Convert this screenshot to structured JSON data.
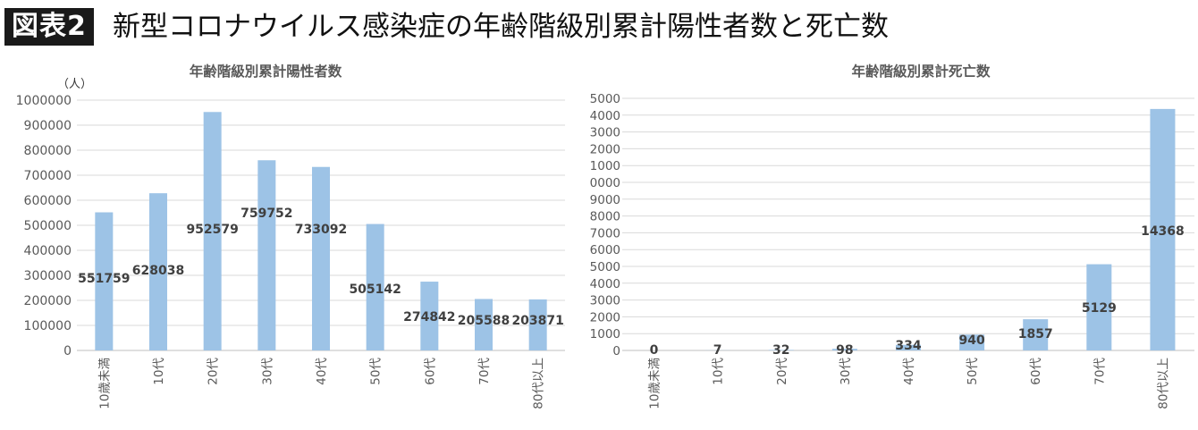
{
  "header": {
    "badge": "図表2",
    "title": "新型コロナウイルス感染症の年齢階級別累計陽性者数と死亡数"
  },
  "chart_data": [
    {
      "type": "bar",
      "title": "年齢階級別累計陽性者数",
      "ylabel": "（人）",
      "categories": [
        "10歳未満",
        "10代",
        "20代",
        "30代",
        "40代",
        "50代",
        "60代",
        "70代",
        "80代以上"
      ],
      "values": [
        551759,
        628038,
        952579,
        759752,
        733092,
        505142,
        274842,
        205588,
        203871
      ],
      "ylim": [
        0,
        1000000
      ],
      "yticks": [
        0,
        100000,
        200000,
        300000,
        400000,
        500000,
        600000,
        700000,
        800000,
        900000,
        1000000
      ],
      "grid": true,
      "bar_color": "#9dc3e6"
    },
    {
      "type": "bar",
      "title": "年齢階級別累計死亡数",
      "ylabel": "",
      "categories": [
        "10歳未満",
        "10代",
        "20代",
        "30代",
        "40代",
        "50代",
        "60代",
        "70代",
        "80代以上"
      ],
      "values": [
        0,
        7,
        32,
        98,
        334,
        940,
        1857,
        5129,
        14368
      ],
      "ylim": [
        0,
        15000
      ],
      "yticks": [
        0,
        1000,
        2000,
        3000,
        4000,
        5000,
        6000,
        7000,
        8000,
        9000,
        10000,
        11000,
        12000,
        13000,
        14000,
        15000
      ],
      "grid": true,
      "bar_color": "#9dc3e6"
    }
  ]
}
